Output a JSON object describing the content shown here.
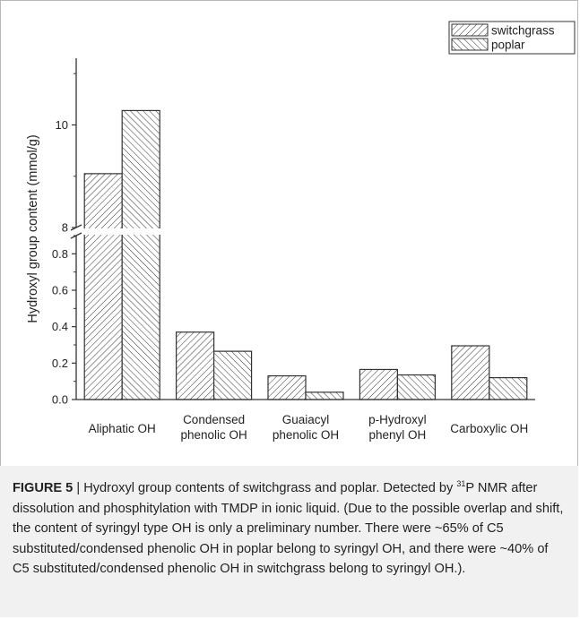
{
  "chart_data": {
    "type": "bar",
    "categories": [
      "Aliphatic OH",
      "Condensed phenolic OH",
      "Guaiacyl phenolic OH",
      "p-Hydroxyl phenyl OH",
      "Carboxylic OH"
    ],
    "category_lines": [
      [
        "Aliphatic OH"
      ],
      [
        "Condensed",
        "phenolic OH"
      ],
      [
        "Guaiacyl",
        "phenolic OH"
      ],
      [
        "p-Hydroxyl",
        "phenyl OH"
      ],
      [
        "Carboxylic OH"
      ]
    ],
    "series": [
      {
        "name": "switchgrass",
        "values": [
          9.05,
          0.37,
          0.13,
          0.165,
          0.295
        ],
        "hatch": "forward"
      },
      {
        "name": "poplar",
        "values": [
          10.28,
          0.265,
          0.04,
          0.135,
          0.12
        ],
        "hatch": "backward"
      }
    ],
    "ylabel": "Hydroxyl group content (mmol/g)",
    "y_axis_break": {
      "lower_range": [
        0,
        0.9
      ],
      "upper_range": [
        8,
        11.3
      ]
    },
    "yticks_lower": [
      "0.0",
      "0.2",
      "0.4",
      "0.6",
      "0.8"
    ],
    "yticks_upper": [
      "8",
      "10"
    ],
    "legend_position": "top-right",
    "grid": false
  },
  "caption": {
    "label": "FIGURE 5",
    "separator": " | ",
    "text_before_sup": "Hydroxyl group contents of switchgrass and poplar. Detected by ",
    "sup": "31",
    "text_after_sup": "P NMR after dissolution and phosphitylation with TMDP in ionic liquid. (Due to the possible overlap and shift, the content of syringyl type OH is only a preliminary number. There were ~65% of C5 substituted/condensed phenolic OH in poplar belong to syringyl OH, and there were ~40% of C5 substituted/condensed phenolic OH in switchgrass belong to syringyl OH.)."
  }
}
